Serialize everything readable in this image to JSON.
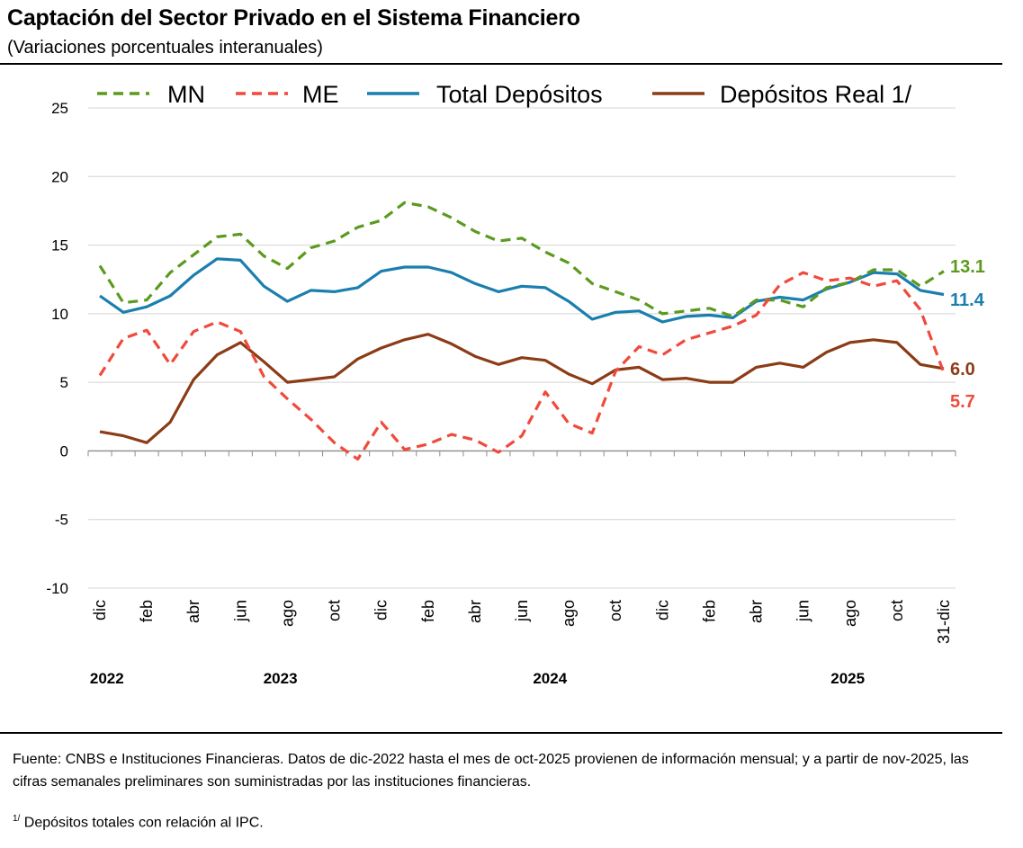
{
  "header": {
    "title": "Captación del Sector Privado en el Sistema Financiero",
    "subtitle": "(Variaciones porcentuales interanuales)"
  },
  "footer": {
    "source": "Fuente: CNBS e Instituciones Financieras. Datos de dic-2022 hasta el mes de oct-2025 provienen de información mensual; y a partir de nov-2025, las cifras semanales preliminares son suministradas por las instituciones financieras.",
    "note_mark": "1/",
    "note": "Depósitos totales con relación al IPC."
  },
  "chart_data": {
    "type": "line",
    "title": "Captación del Sector Privado en el Sistema Financiero",
    "subtitle": "(Variaciones porcentuales interanuales)",
    "xlabel": "",
    "ylabel": "",
    "ylim": [
      -10,
      25
    ],
    "yticks": [
      25,
      20,
      15,
      10,
      5,
      0,
      -5,
      -10
    ],
    "grid": true,
    "legend_position": "top",
    "x": [
      "dic-2022",
      "ene-2023",
      "feb-2023",
      "mar-2023",
      "abr-2023",
      "may-2023",
      "jun-2023",
      "jul-2023",
      "ago-2023",
      "sep-2023",
      "oct-2023",
      "nov-2023",
      "dic-2023",
      "ene-2024",
      "feb-2024",
      "mar-2024",
      "abr-2024",
      "may-2024",
      "jun-2024",
      "jul-2024",
      "ago-2024",
      "sep-2024",
      "oct-2024",
      "nov-2024",
      "dic-2024",
      "ene-2025",
      "feb-2025",
      "mar-2025",
      "abr-2025",
      "may-2025",
      "jun-2025",
      "jul-2025",
      "ago-2025",
      "sep-2025",
      "oct-2025",
      "nov-2025",
      "31-dic"
    ],
    "tick_labels": [
      "dic",
      "",
      "feb",
      "",
      "abr",
      "",
      "jun",
      "",
      "ago",
      "",
      "oct",
      "",
      "dic",
      "",
      "feb",
      "",
      "abr",
      "",
      "jun",
      "",
      "ago",
      "",
      "oct",
      "",
      "dic",
      "",
      "feb",
      "",
      "abr",
      "",
      "jun",
      "",
      "ago",
      "",
      "oct",
      "",
      "31-dic"
    ],
    "year_labels": [
      {
        "label": "2022",
        "at": 0.3
      },
      {
        "label": "2023",
        "at": 7.7
      },
      {
        "label": "2024",
        "at": 19.2
      },
      {
        "label": "2025",
        "at": 31.9
      }
    ],
    "series": [
      {
        "name": "MN",
        "color": "#5b9a1e",
        "style": "dashed",
        "values": [
          13.5,
          10.8,
          11.0,
          13.0,
          14.3,
          15.6,
          15.8,
          14.2,
          13.3,
          14.8,
          15.3,
          16.3,
          16.8,
          18.1,
          17.8,
          17.0,
          16.0,
          15.3,
          15.5,
          14.5,
          13.7,
          12.2,
          11.6,
          11.0,
          10.0,
          10.2,
          10.4,
          9.8,
          11.0,
          11.0,
          10.5,
          11.9,
          12.3,
          13.2,
          13.2,
          12.0,
          13.1
        ],
        "end_label": "13.1"
      },
      {
        "name": "ME",
        "color": "#f04a3c",
        "style": "dashed",
        "values": [
          5.5,
          8.2,
          8.8,
          6.3,
          8.7,
          9.4,
          8.7,
          5.4,
          3.8,
          2.3,
          0.6,
          -0.6,
          2.1,
          0.1,
          0.5,
          1.2,
          0.8,
          -0.1,
          1.1,
          4.3,
          2.0,
          1.3,
          5.8,
          7.6,
          7.0,
          8.1,
          8.6,
          9.1,
          9.9,
          12.1,
          13.0,
          12.4,
          12.6,
          12.0,
          12.4,
          10.3,
          5.7
        ],
        "end_label": "5.7"
      },
      {
        "name": "Total Depósitos",
        "color": "#1a7fae",
        "style": "solid",
        "values": [
          11.3,
          10.1,
          10.5,
          11.3,
          12.8,
          14.0,
          13.9,
          12.0,
          10.9,
          11.7,
          11.6,
          11.9,
          13.1,
          13.4,
          13.4,
          13.0,
          12.2,
          11.6,
          12.0,
          11.9,
          10.9,
          9.6,
          10.1,
          10.2,
          9.4,
          9.8,
          9.9,
          9.7,
          10.9,
          11.2,
          11.0,
          11.8,
          12.3,
          13.0,
          12.9,
          11.7,
          11.4
        ],
        "end_label": "11.4"
      },
      {
        "name": "Depósitos Real 1/",
        "color": "#8b3c16",
        "style": "solid",
        "values": [
          1.4,
          1.1,
          0.6,
          2.1,
          5.2,
          7.0,
          7.9,
          6.5,
          5.0,
          5.2,
          5.4,
          6.7,
          7.5,
          8.1,
          8.5,
          7.8,
          6.9,
          6.3,
          6.8,
          6.6,
          5.6,
          4.9,
          5.9,
          6.1,
          5.2,
          5.3,
          5.0,
          5.0,
          6.1,
          6.4,
          6.1,
          7.2,
          7.9,
          8.1,
          7.9,
          6.3,
          6.0
        ],
        "end_label": "6.0"
      }
    ]
  }
}
